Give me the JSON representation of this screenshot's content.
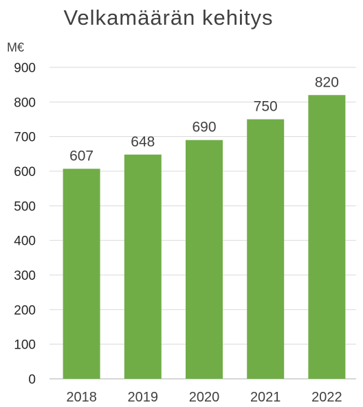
{
  "chart_data": {
    "type": "bar",
    "title": "Velkamäärän kehitys",
    "unit_label": "M€",
    "categories": [
      "2018",
      "2019",
      "2020",
      "2021",
      "2022"
    ],
    "values": [
      607,
      648,
      690,
      750,
      820
    ],
    "data_labels": [
      "607",
      "648",
      "690",
      "750",
      "820"
    ],
    "ylim": [
      0,
      900
    ],
    "yticks": [
      0,
      100,
      200,
      300,
      400,
      500,
      600,
      700,
      800,
      900
    ],
    "ytick_labels": [
      "0",
      "100",
      "200",
      "300",
      "400",
      "500",
      "600",
      "700",
      "800",
      "900"
    ],
    "grid": true,
    "bar_color": "#70ad47"
  }
}
